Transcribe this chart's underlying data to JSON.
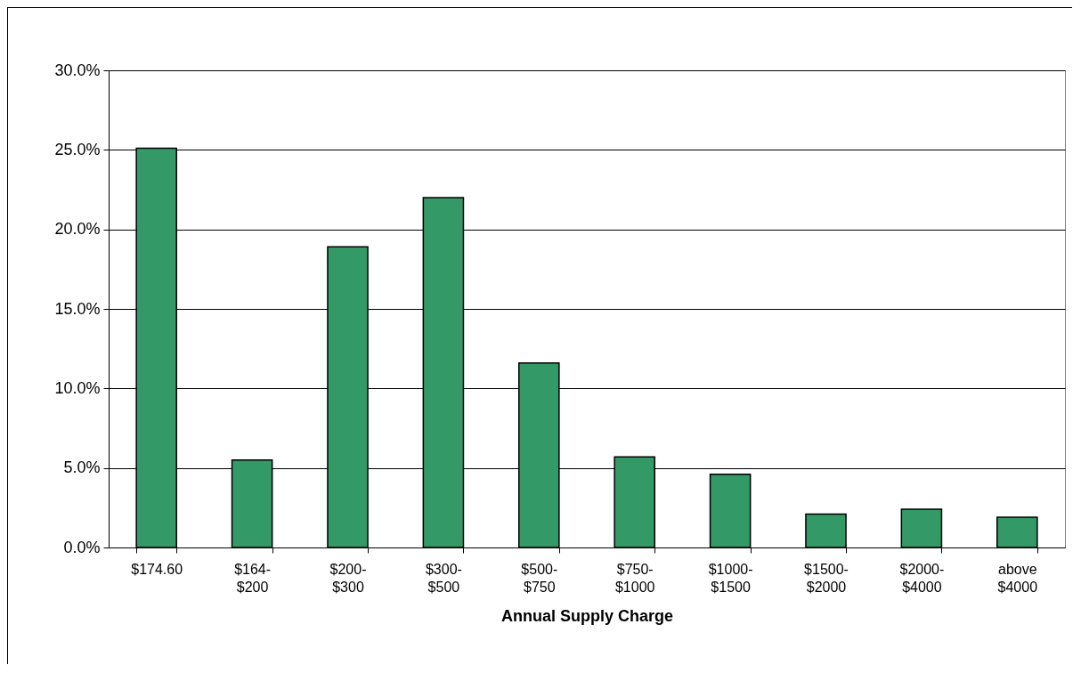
{
  "chart_data": {
    "type": "bar",
    "xlabel": "Annual Supply Charge",
    "categories": [
      "$174.60",
      "$164-\n$200",
      "$200-\n$300",
      "$300-\n$500",
      "$500-\n$750",
      "$750-\n$1000",
      "$1000-\n$1500",
      "$1500-\n$2000",
      "$2000-\n$4000",
      "above\n$4000"
    ],
    "values": [
      25.1,
      5.5,
      18.9,
      22.0,
      11.6,
      5.7,
      4.6,
      2.1,
      2.4,
      1.9
    ],
    "color": "#339966",
    "ylim": [
      0,
      30
    ],
    "yticks": [
      {
        "value": 0,
        "label": "0.0%"
      },
      {
        "value": 5,
        "label": "5.0%"
      },
      {
        "value": 10,
        "label": "10.0%"
      },
      {
        "value": 15,
        "label": "15.0%"
      },
      {
        "value": 20,
        "label": "20.0%"
      },
      {
        "value": 25,
        "label": "25.0%"
      },
      {
        "value": 30,
        "label": "30.0%"
      }
    ],
    "grid": "y"
  }
}
